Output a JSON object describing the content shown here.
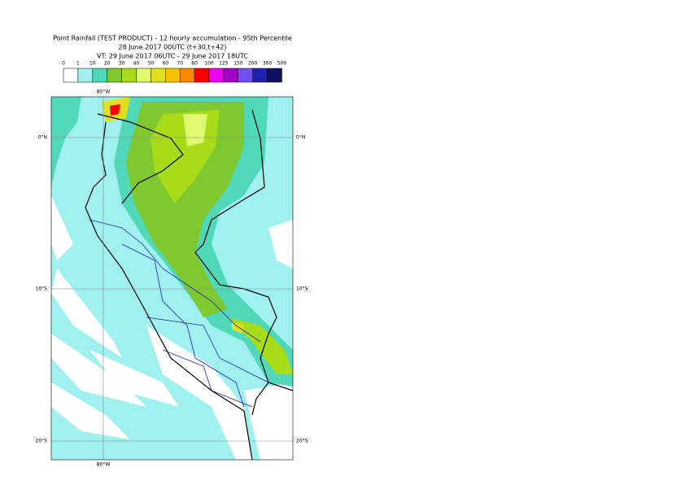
{
  "header": {
    "lines": [
      "Point Rainfall (TEST PRODUCT) - 12 hourly accumulation - 95th Percentile",
      "28 June 2017 00UTC (t+30,t+42)",
      "VT: 29 June 2017 06UTC - 29 June 2017 18UTC"
    ]
  },
  "legend": {
    "labels": [
      0,
      1,
      10,
      20,
      30,
      40,
      50,
      60,
      70,
      80,
      100,
      125,
      150,
      200,
      300,
      500
    ],
    "colors": [
      "#ffffff",
      "#a0f0f0",
      "#50d8b8",
      "#80c830",
      "#a8dc18",
      "#e0f870",
      "#e0e020",
      "#f8c000",
      "#f88800",
      "#f80000",
      "#f000f0",
      "#a000c8",
      "#7050f0",
      "#2020b0",
      "#101060"
    ]
  },
  "grid": {
    "lon": "80°W",
    "lat": [
      "0°N",
      "10°S",
      "20°S"
    ]
  }
}
